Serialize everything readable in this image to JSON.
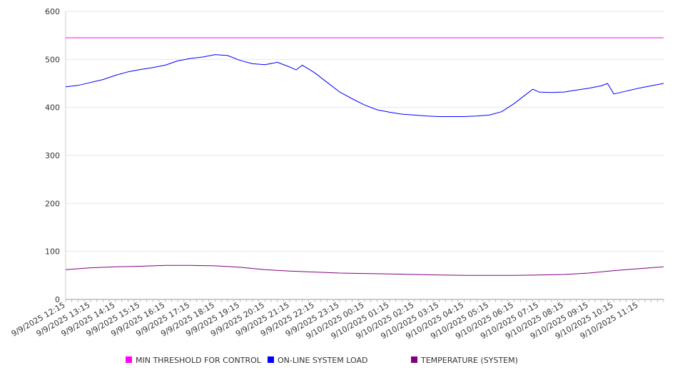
{
  "chart_data": {
    "type": "line",
    "title": "",
    "xlabel": "",
    "ylabel": "",
    "ylim": [
      0,
      600
    ],
    "y_ticks": [
      0,
      100,
      200,
      300,
      400,
      500,
      600
    ],
    "x_tick_labels": [
      "9/9/2025 12:15",
      "9/9/2025 13:15",
      "9/9/2025 14:15",
      "9/9/2025 15:15",
      "9/9/2025 16:15",
      "9/9/2025 17:15",
      "9/9/2025 18:15",
      "9/9/2025 19:15",
      "9/9/2025 20:15",
      "9/9/2025 21:15",
      "9/9/2025 22:15",
      "9/9/2025 23:15",
      "9/10/2025 00:15",
      "9/10/2025 01:15",
      "9/10/2025 02:15",
      "9/10/2025 03:15",
      "9/10/2025 04:15",
      "9/10/2025 05:15",
      "9/10/2025 06:15",
      "9/10/2025 07:15",
      "9/10/2025 08:15",
      "9/10/2025 09:15",
      "9/10/2025 10:15",
      "9/10/2025 11:15"
    ],
    "grid": true,
    "legend_position": "bottom",
    "series": [
      {
        "name": "MIN THRESHOLD FOR CONTROL",
        "color": "#ff00ff",
        "x": [
          "9/9/2025 12:15",
          "9/10/2025 12:15"
        ],
        "values": [
          545,
          545
        ]
      },
      {
        "name": "ON-LINE SYSTEM LOAD",
        "color": "#0000ff",
        "x": [
          "9/9/2025 12:15",
          "9/9/2025 12:45",
          "9/9/2025 13:15",
          "9/9/2025 13:45",
          "9/9/2025 14:15",
          "9/9/2025 14:45",
          "9/9/2025 15:15",
          "9/9/2025 15:45",
          "9/9/2025 16:15",
          "9/9/2025 16:45",
          "9/9/2025 17:15",
          "9/9/2025 17:45",
          "9/9/2025 18:15",
          "9/9/2025 18:45",
          "9/9/2025 19:15",
          "9/9/2025 19:45",
          "9/9/2025 20:15",
          "9/9/2025 20:45",
          "9/9/2025 21:15",
          "9/9/2025 21:30",
          "9/9/2025 21:45",
          "9/9/2025 22:15",
          "9/9/2025 22:45",
          "9/9/2025 23:15",
          "9/9/2025 23:45",
          "9/10/2025 00:15",
          "9/10/2025 00:45",
          "9/10/2025 01:15",
          "9/10/2025 01:45",
          "9/10/2025 02:15",
          "9/10/2025 02:45",
          "9/10/2025 03:15",
          "9/10/2025 03:45",
          "9/10/2025 04:15",
          "9/10/2025 04:45",
          "9/10/2025 05:15",
          "9/10/2025 05:45",
          "9/10/2025 06:15",
          "9/10/2025 06:45",
          "9/10/2025 07:00",
          "9/10/2025 07:15",
          "9/10/2025 07:45",
          "9/10/2025 08:15",
          "9/10/2025 08:45",
          "9/10/2025 09:15",
          "9/10/2025 09:45",
          "9/10/2025 10:00",
          "9/10/2025 10:15",
          "9/10/2025 10:45",
          "9/10/2025 11:15",
          "9/10/2025 11:45",
          "9/10/2025 12:15"
        ],
        "values": [
          443,
          446,
          452,
          458,
          467,
          474,
          479,
          483,
          488,
          497,
          502,
          505,
          510,
          508,
          498,
          491,
          489,
          494,
          484,
          478,
          488,
          472,
          452,
          432,
          418,
          405,
          395,
          390,
          386,
          384,
          382,
          381,
          381,
          381,
          382,
          384,
          391,
          408,
          428,
          438,
          432,
          431,
          432,
          436,
          440,
          445,
          450,
          428,
          434,
          440,
          445,
          450
        ]
      },
      {
        "name": "TEMPERATURE (SYSTEM)",
        "color": "#800080",
        "x": [
          "9/9/2025 12:15",
          "9/9/2025 13:15",
          "9/9/2025 14:15",
          "9/9/2025 15:15",
          "9/9/2025 16:15",
          "9/9/2025 17:15",
          "9/9/2025 18:15",
          "9/9/2025 19:15",
          "9/9/2025 20:15",
          "9/9/2025 21:15",
          "9/9/2025 22:15",
          "9/9/2025 23:15",
          "9/10/2025 00:15",
          "9/10/2025 01:15",
          "9/10/2025 02:15",
          "9/10/2025 03:15",
          "9/10/2025 04:15",
          "9/10/2025 05:15",
          "9/10/2025 06:15",
          "9/10/2025 07:15",
          "9/10/2025 08:15",
          "9/10/2025 09:15",
          "9/10/2025 10:15",
          "9/10/2025 11:15",
          "9/10/2025 12:15"
        ],
        "values": [
          62,
          66,
          68,
          69,
          71,
          71,
          70,
          67,
          62,
          59,
          57,
          55,
          54,
          53,
          52,
          51,
          50,
          50,
          50,
          51,
          52,
          55,
          60,
          64,
          68
        ]
      }
    ]
  }
}
